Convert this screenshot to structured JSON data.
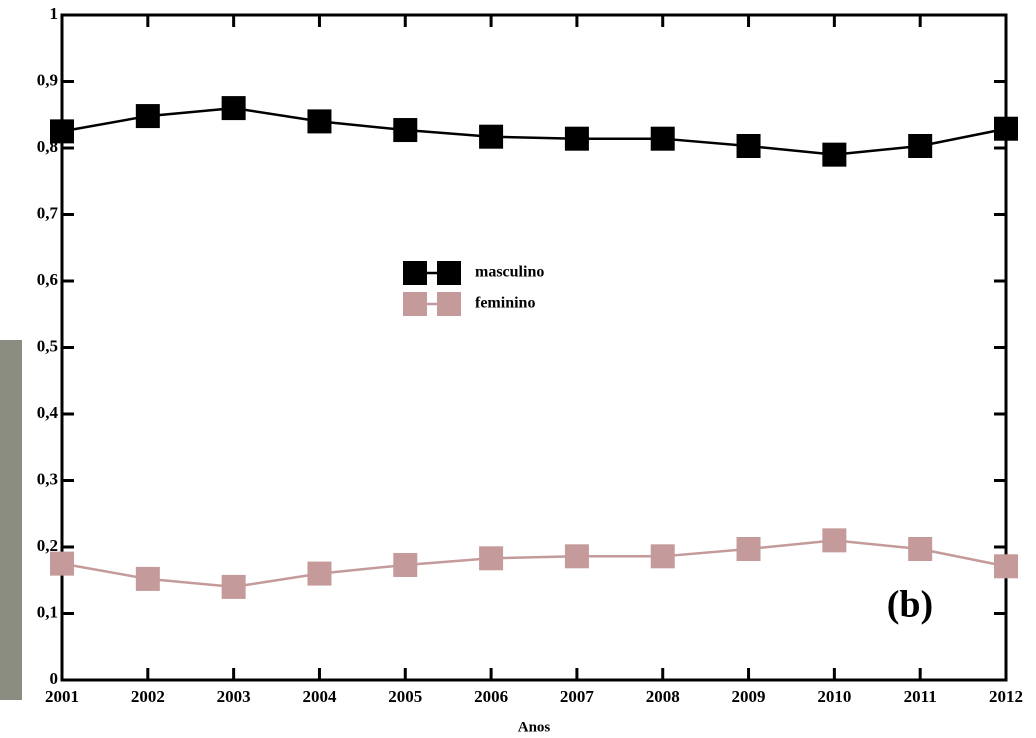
{
  "chart_data": {
    "type": "line",
    "x_label": "Anos",
    "annotation": "(b)",
    "x": [
      2001,
      2002,
      2003,
      2004,
      2005,
      2006,
      2007,
      2008,
      2009,
      2010,
      2011,
      2012
    ],
    "xlim": [
      2001,
      2012
    ],
    "xticks": [
      2001,
      2002,
      2003,
      2004,
      2005,
      2006,
      2007,
      2008,
      2009,
      2010,
      2011,
      2012
    ],
    "ylim": [
      0,
      1
    ],
    "yticks": [
      0,
      {
        "value": 0.1,
        "label": "0,1"
      },
      {
        "value": 0.2,
        "label": "0,2"
      },
      {
        "value": 0.3,
        "label": "0,3"
      },
      {
        "value": 0.4,
        "label": "0,4"
      },
      {
        "value": 0.5,
        "label": "0,5"
      },
      {
        "value": 0.6,
        "label": "0,6"
      },
      {
        "value": 0.7,
        "label": "0,7"
      },
      {
        "value": 0.8,
        "label": "0,8"
      },
      {
        "value": 0.9,
        "label": "0,9"
      },
      1
    ],
    "series": [
      {
        "name": "masculino",
        "color": "#000000",
        "values": [
          0.825,
          0.848,
          0.86,
          0.84,
          0.827,
          0.817,
          0.814,
          0.814,
          0.803,
          0.79,
          0.803,
          0.829
        ]
      },
      {
        "name": "feminino",
        "color": "#c49a9a",
        "values": [
          0.175,
          0.152,
          0.14,
          0.16,
          0.173,
          0.183,
          0.186,
          0.186,
          0.197,
          0.21,
          0.197,
          0.171
        ]
      }
    ]
  }
}
